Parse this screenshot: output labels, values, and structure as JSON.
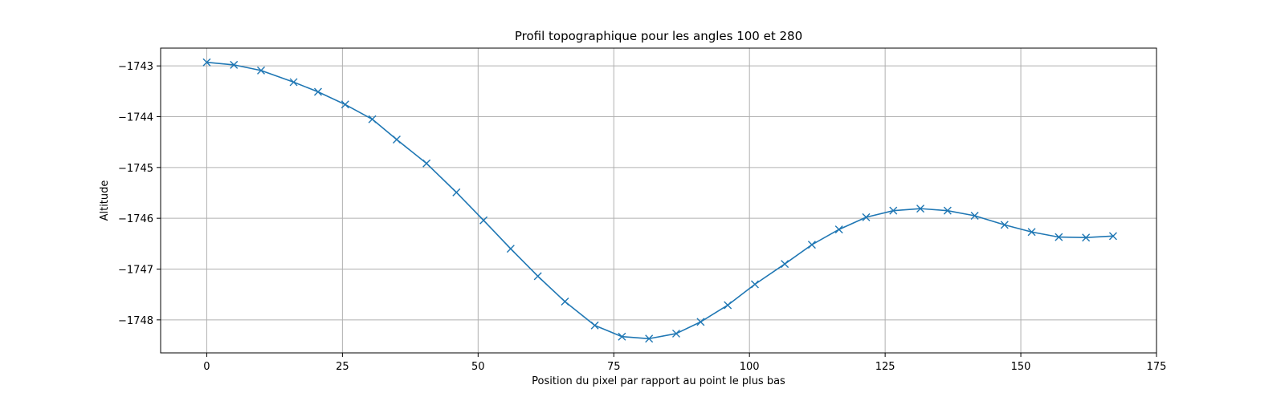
{
  "chart_data": {
    "type": "line",
    "title": "Profil topographique pour les angles 100 et 280",
    "xlabel": "Position du pixel par rapport au point le plus bas",
    "ylabel": "Altitude",
    "xlim": [
      -8.5,
      175
    ],
    "ylim": [
      -1748.65,
      -1742.65
    ],
    "x_ticks": [
      0,
      25,
      50,
      75,
      100,
      125,
      150,
      175
    ],
    "x_tick_labels": [
      "0",
      "25",
      "50",
      "75",
      "100",
      "125",
      "150",
      "175"
    ],
    "y_ticks": [
      -1743,
      -1744,
      -1745,
      -1746,
      -1747,
      -1748
    ],
    "y_tick_labels": [
      "−1743",
      "−1744",
      "−1745",
      "−1746",
      "−1747",
      "−1748"
    ],
    "grid": true,
    "marker": "x",
    "color": "#1f77b4",
    "series": [
      {
        "x": [
          0,
          5,
          10,
          16,
          20.5,
          25.5,
          30.5,
          35,
          40.5,
          46,
          51,
          56,
          61,
          66,
          71.5,
          76.5,
          81.5,
          86.5,
          91,
          96,
          101,
          106.5,
          111.5,
          116.5,
          121.5,
          126.5,
          131.5,
          136.5,
          141.5,
          147,
          152,
          157,
          162,
          167
        ],
        "y": [
          -1742.93,
          -1742.98,
          -1743.09,
          -1743.32,
          -1743.51,
          -1743.76,
          -1744.05,
          -1744.45,
          -1744.92,
          -1745.49,
          -1746.04,
          -1746.6,
          -1747.14,
          -1747.64,
          -1748.11,
          -1748.33,
          -1748.37,
          -1748.27,
          -1748.04,
          -1747.71,
          -1747.3,
          -1746.9,
          -1746.52,
          -1746.22,
          -1745.98,
          -1745.85,
          -1745.81,
          -1745.85,
          -1745.95,
          -1746.13,
          -1746.27,
          -1746.37,
          -1746.38,
          -1746.35
        ]
      }
    ]
  }
}
